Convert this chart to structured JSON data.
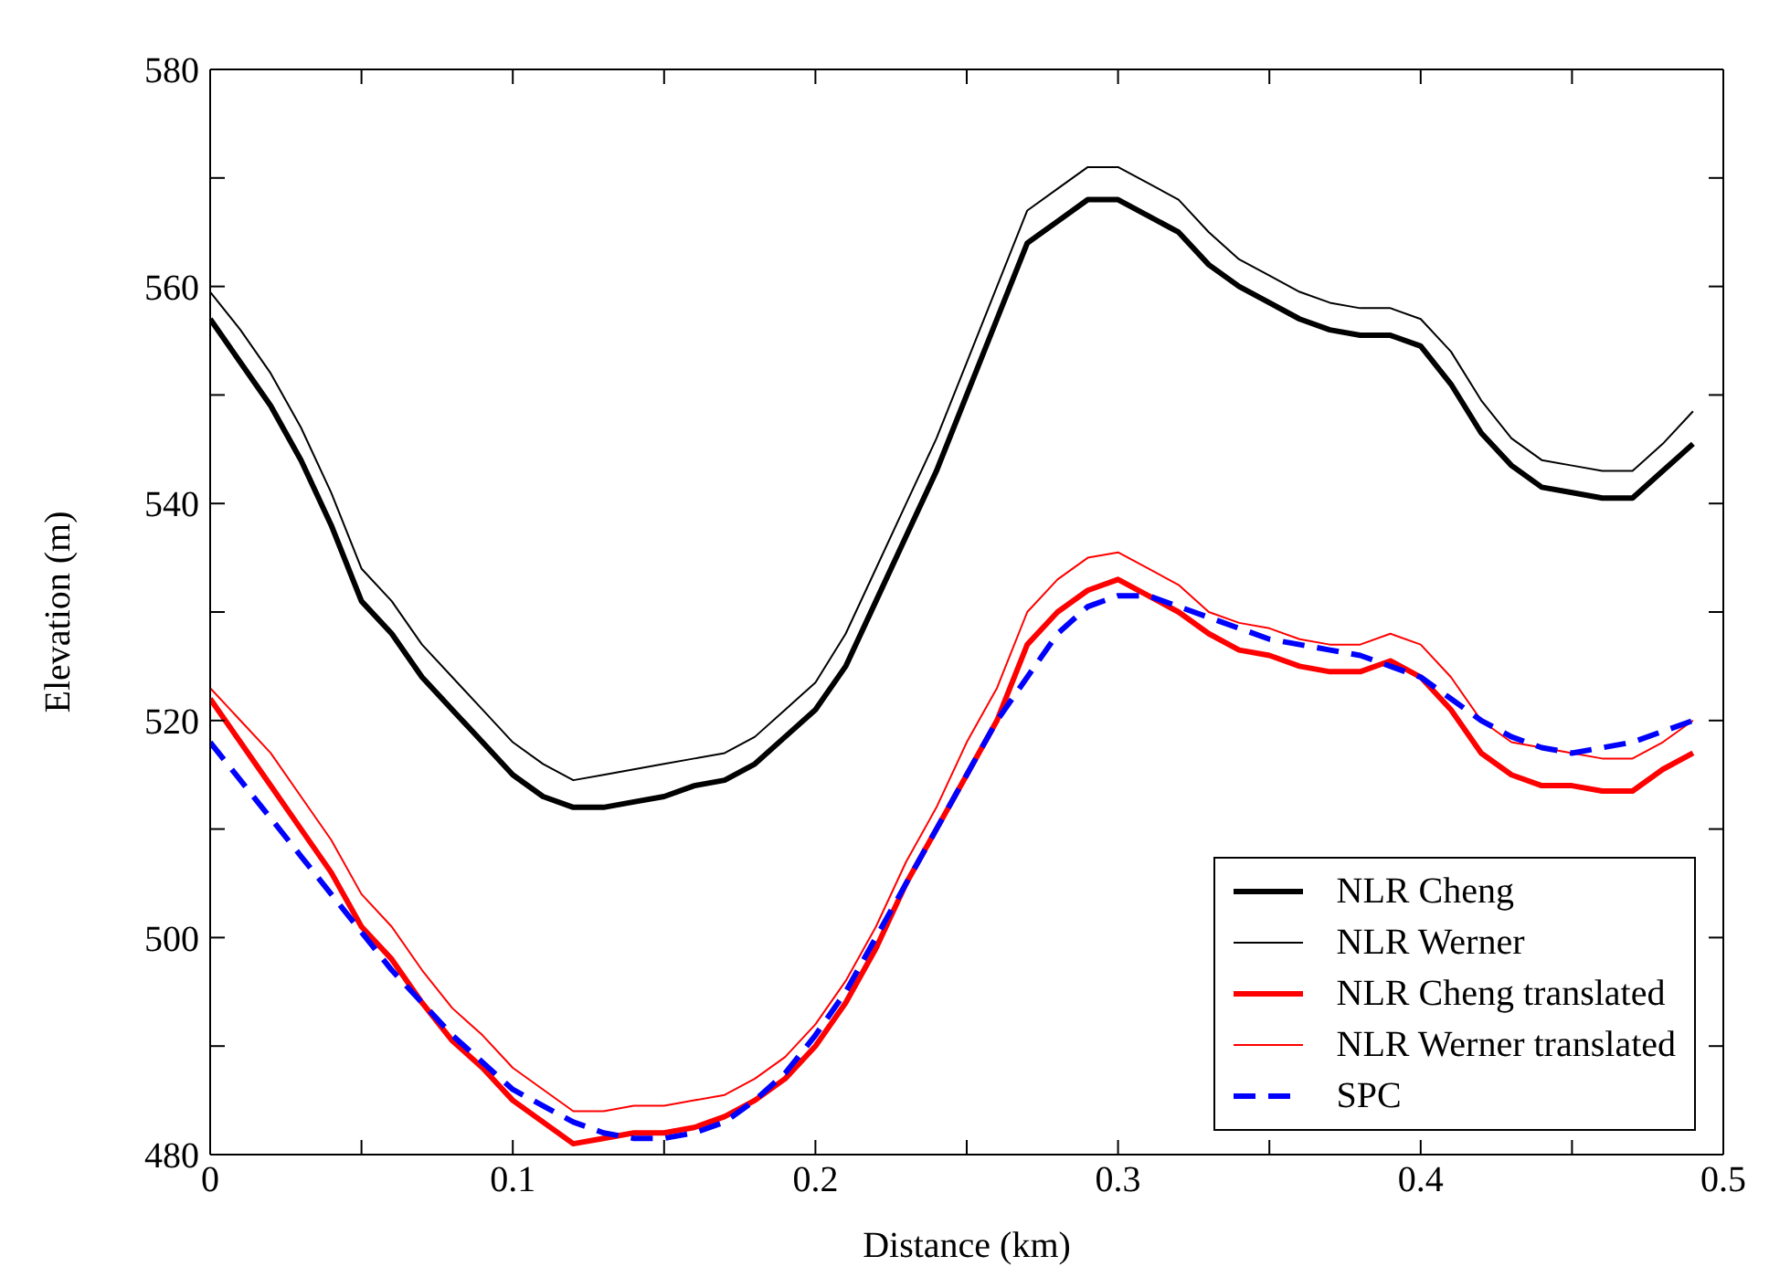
{
  "chart_data": {
    "type": "line",
    "xlabel": "Distance (km)",
    "ylabel": "Elevation (m)",
    "x": [
      0,
      0.01,
      0.02,
      0.03,
      0.04,
      0.05,
      0.06,
      0.07,
      0.08,
      0.09,
      0.1,
      0.11,
      0.12,
      0.13,
      0.14,
      0.15,
      0.16,
      0.17,
      0.18,
      0.19,
      0.2,
      0.21,
      0.22,
      0.23,
      0.24,
      0.25,
      0.26,
      0.27,
      0.28,
      0.29,
      0.3,
      0.31,
      0.32,
      0.33,
      0.34,
      0.35,
      0.36,
      0.37,
      0.38,
      0.39,
      0.4,
      0.41,
      0.42,
      0.43,
      0.44,
      0.45,
      0.46,
      0.47,
      0.48,
      0.49
    ],
    "xlim": [
      0,
      0.5
    ],
    "ylim": [
      480,
      580
    ],
    "xticks": [
      0,
      {
        "value": 0.05,
        "label": null
      },
      0.1,
      {
        "value": 0.15,
        "label": null
      },
      0.2,
      {
        "value": 0.25,
        "label": null
      },
      0.3,
      {
        "value": 0.35,
        "label": null
      },
      0.4,
      {
        "value": 0.45,
        "label": null
      },
      0.5
    ],
    "yticks": [
      480,
      {
        "value": 490,
        "label": null
      },
      500,
      {
        "value": 510,
        "label": null
      },
      520,
      {
        "value": 530,
        "label": null
      },
      540,
      {
        "value": 550,
        "label": null
      },
      560,
      {
        "value": 570,
        "label": null
      },
      580
    ],
    "grid": false,
    "legend": "bottom right",
    "marker": "none",
    "series": [
      {
        "name": "NLR Cheng",
        "color": "#000000",
        "line_style": "solid",
        "values": [
          557,
          553,
          549,
          544,
          538,
          531,
          528,
          524,
          521,
          518,
          515,
          513,
          512,
          512,
          512.5,
          513,
          514,
          514.5,
          516,
          518.5,
          521,
          525,
          531,
          537,
          543,
          550,
          557,
          564,
          566,
          568,
          568,
          566.5,
          565,
          562,
          560,
          558.5,
          557,
          556,
          555.5,
          555.5,
          554.5,
          551,
          546.5,
          543.5,
          541.5,
          541,
          540.5,
          540.5,
          543,
          545.5
        ]
      },
      {
        "name": "NLR Werner",
        "color": "#000000",
        "line_style": "solid",
        "values": [
          559.5,
          556,
          552,
          547,
          541,
          534,
          531,
          527,
          524,
          521,
          518,
          516,
          514.5,
          515,
          515.5,
          516,
          516.5,
          517,
          518.5,
          521,
          523.5,
          528,
          534,
          540,
          546,
          553,
          560,
          567,
          569,
          571,
          571,
          569.5,
          568,
          565,
          562.5,
          561,
          559.5,
          558.5,
          558,
          558,
          557,
          554,
          549.5,
          546,
          544,
          543.5,
          543,
          543,
          545.5,
          548.5
        ]
      },
      {
        "name": "NLR Cheng translated",
        "color": "#ff0000",
        "line_style": "solid",
        "values": [
          522,
          518,
          514,
          510,
          506,
          501,
          498,
          494,
          490.5,
          488,
          485,
          483,
          481,
          481.5,
          482,
          482,
          482.5,
          483.5,
          485,
          487,
          490,
          494,
          499,
          505,
          510,
          515,
          520,
          527,
          530,
          532,
          533,
          531.5,
          530,
          528,
          526.5,
          526,
          525,
          524.5,
          524.5,
          525.5,
          524,
          521,
          517,
          515,
          514,
          514,
          513.5,
          513.5,
          515.5,
          517
        ]
      },
      {
        "name": "NLR Werner translated",
        "color": "#ff0000",
        "line_style": "solid",
        "values": [
          523,
          520,
          517,
          513,
          509,
          504,
          501,
          497,
          493.5,
          491,
          488,
          486,
          484,
          484,
          484.5,
          484.5,
          485,
          485.5,
          487,
          489,
          492,
          496,
          501,
          507,
          512,
          518,
          523,
          530,
          533,
          535,
          535.5,
          534,
          532.5,
          530,
          529,
          528.5,
          527.5,
          527,
          527,
          528,
          527,
          524,
          520,
          518,
          517.5,
          517,
          516.5,
          516.5,
          518,
          520
        ]
      },
      {
        "name": "SPC",
        "color": "#0000ff",
        "line_style": "dashed",
        "values": [
          518,
          514.5,
          511,
          507.5,
          504,
          500.5,
          497,
          494,
          491,
          488.5,
          486,
          484.5,
          483,
          482,
          481.5,
          481.5,
          482,
          483,
          485,
          487.5,
          491,
          495,
          500,
          505,
          510,
          515,
          520,
          524,
          528,
          530.5,
          531.5,
          531.5,
          530.5,
          529.5,
          528.5,
          527.5,
          527,
          526.5,
          526,
          525,
          524,
          522,
          520,
          518.5,
          517.5,
          517,
          517.5,
          518,
          519,
          520
        ]
      }
    ]
  }
}
